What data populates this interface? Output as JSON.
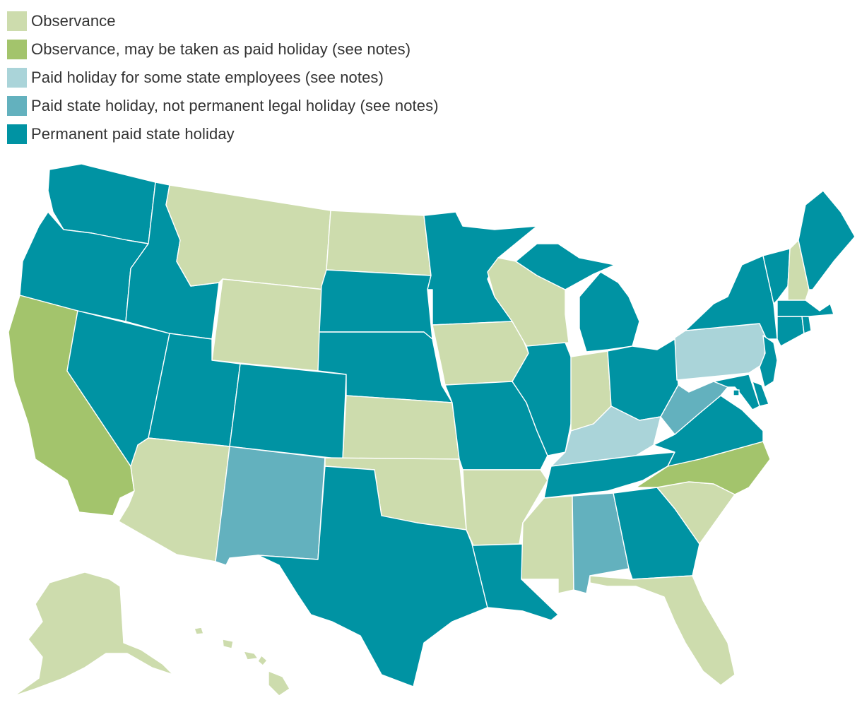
{
  "colors": {
    "observance": "#cddcad",
    "observance_paid": "#a3c46c",
    "paid_some": "#aad4d9",
    "paid_not_permanent": "#63b1be",
    "permanent": "#0093a3"
  },
  "legend": [
    {
      "key": "observance",
      "label": "Observance"
    },
    {
      "key": "observance_paid",
      "label": "Observance, may be taken as paid holiday (see notes)"
    },
    {
      "key": "paid_some",
      "label": "Paid holiday for some state employees (see notes)"
    },
    {
      "key": "paid_not_permanent",
      "label": "Paid state holiday, not permanent legal holiday (see notes)"
    },
    {
      "key": "permanent",
      "label": "Permanent paid state holiday"
    }
  ],
  "states": {
    "WA": "permanent",
    "OR": "permanent",
    "CA": "observance_paid",
    "NV": "permanent",
    "ID": "permanent",
    "MT": "observance",
    "WY": "observance",
    "UT": "permanent",
    "AZ": "observance",
    "CO": "permanent",
    "NM": "paid_not_permanent",
    "ND": "observance",
    "SD": "permanent",
    "NE": "permanent",
    "KS": "observance",
    "OK": "observance",
    "TX": "permanent",
    "MN": "permanent",
    "IA": "observance",
    "MO": "permanent",
    "AR": "observance",
    "LA": "permanent",
    "WI": "observance",
    "IL": "permanent",
    "MI": "permanent",
    "IN": "observance",
    "OH": "permanent",
    "KY": "paid_some",
    "TN": "permanent",
    "MS": "observance",
    "AL": "paid_not_permanent",
    "GA": "permanent",
    "FL": "observance",
    "SC": "observance",
    "NC": "observance_paid",
    "VA": "permanent",
    "WV": "paid_not_permanent",
    "PA": "paid_some",
    "NY": "permanent",
    "VT": "permanent",
    "NH": "observance",
    "ME": "permanent",
    "MA": "permanent",
    "RI": "permanent",
    "CT": "permanent",
    "NJ": "permanent",
    "DE": "permanent",
    "MD": "permanent",
    "DC": "permanent",
    "AK": "observance",
    "HI": "observance"
  }
}
